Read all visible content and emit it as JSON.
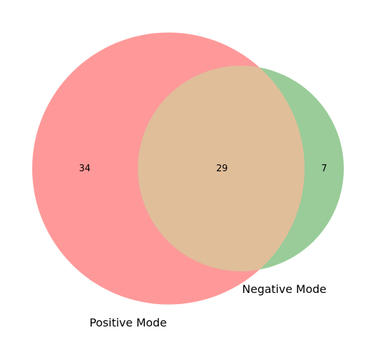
{
  "venn": {
    "sets": [
      {
        "name": "Positive Mode",
        "color": "#ff8080"
      },
      {
        "name": "Negative Mode",
        "color": "#80c080"
      }
    ],
    "overlap_color": "#e0be9a",
    "counts": {
      "positive_only": "34",
      "intersection": "29",
      "negative_only": "7"
    }
  }
}
